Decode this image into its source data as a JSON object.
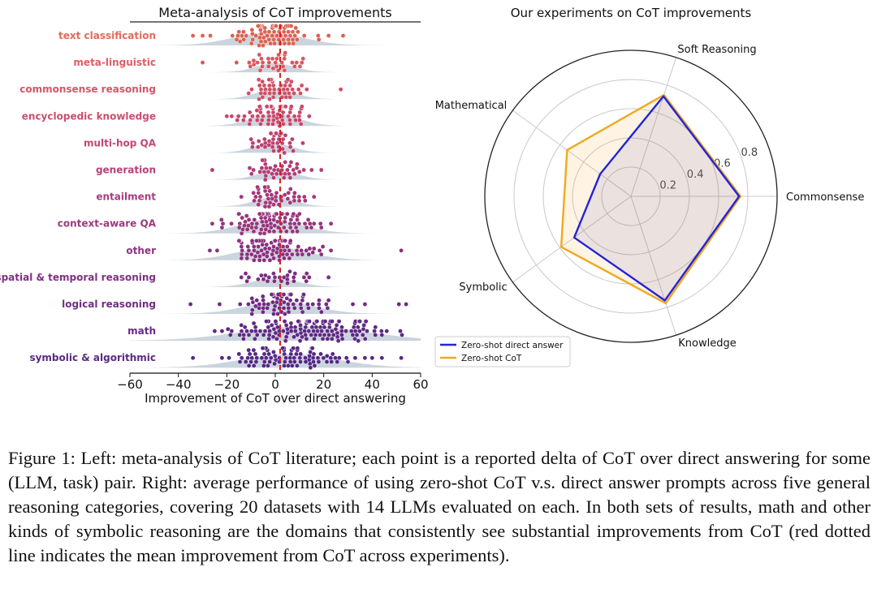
{
  "caption": "Figure 1: Left: meta-analysis of CoT literature; each point is a reported delta of CoT over direct answering for some (LLM, task) pair. Right: average performance of using zero-shot CoT v.s. direct answer prompts across five general reasoning categories, covering 20 datasets with 14 LLMs evaluated on each. In both sets of results, math and other kinds of symbolic reasoning are the domains that consistently see substantial improvements from CoT (red dotted line indicates the mean improvement from CoT across experiments).",
  "chart_data": [
    {
      "type": "scatter",
      "subtype": "beeswarm",
      "title": "Meta-analysis of CoT improvements",
      "xlabel": "Improvement of CoT over direct answering",
      "xlim": [
        -60,
        60
      ],
      "xticks": [
        "−60",
        "−40",
        "−20",
        "0",
        "20",
        "40",
        "60"
      ],
      "mean_line": 2,
      "colors": {
        "mean_line": "#d62020",
        "density": "#b8c7d3",
        "top_category": "#e26a5a",
        "bottom_category": "#5b2a86"
      },
      "categories": [
        {
          "label": "text classification",
          "color": "#e26a5a",
          "dot": "#e0604f",
          "n": 75,
          "center": -3,
          "spread": 9,
          "extremes": [
            -34,
            -30,
            18,
            22,
            28
          ]
        },
        {
          "label": "meta-linguistic",
          "color": "#db5f63",
          "dot": "#d9585e",
          "n": 30,
          "center": 0,
          "spread": 5,
          "extremes": [
            -30,
            -16,
            8,
            11
          ]
        },
        {
          "label": "commonsense reasoning",
          "color": "#d3566a",
          "dot": "#d04f66",
          "n": 45,
          "center": 0,
          "spread": 5,
          "extremes": [
            -11,
            13,
            27
          ]
        },
        {
          "label": "encyclopedic knowledge",
          "color": "#cb4e70",
          "dot": "#c8476b",
          "n": 70,
          "center": 0,
          "spread": 6,
          "extremes": [
            -20,
            -18,
            11,
            14
          ]
        },
        {
          "label": "multi-hop QA",
          "color": "#c14775",
          "dot": "#be4070",
          "n": 40,
          "center": -1,
          "spread": 5,
          "extremes": [
            -10,
            7
          ]
        },
        {
          "label": "generation",
          "color": "#b64178",
          "dot": "#b33a74",
          "n": 35,
          "center": 1,
          "spread": 5,
          "extremes": [
            -26,
            -9,
            8,
            10,
            15,
            19
          ]
        },
        {
          "label": "entailment",
          "color": "#a93c7c",
          "dot": "#a53678",
          "n": 40,
          "center": 0,
          "spread": 5,
          "extremes": [
            -14,
            8,
            12,
            16
          ]
        },
        {
          "label": "context-aware QA",
          "color": "#9c387f",
          "dot": "#98337b",
          "n": 90,
          "center": -2,
          "spread": 8,
          "extremes": [
            -26,
            -22,
            16,
            19,
            23
          ]
        },
        {
          "label": "other",
          "color": "#8e3481",
          "dot": "#8a307e",
          "n": 85,
          "center": -1,
          "spread": 9,
          "extremes": [
            -27,
            -24,
            16,
            19,
            23,
            52
          ]
        },
        {
          "label": "spatial & temporal reasoning",
          "color": "#803083",
          "dot": "#7c2d81",
          "n": 25,
          "center": 0,
          "spread": 6,
          "extremes": [
            -14,
            14,
            22
          ]
        },
        {
          "label": "logical reasoning",
          "color": "#722d84",
          "dot": "#6e2a82",
          "n": 70,
          "center": 2,
          "spread": 9,
          "extremes": [
            -35,
            -23,
            18,
            22,
            32,
            37,
            51,
            54
          ]
        },
        {
          "label": "math",
          "color": "#642b85",
          "dot": "#5f2884",
          "n": 150,
          "center": 12,
          "spread": 16,
          "extremes": [
            -25,
            -22,
            -18,
            -14,
            44,
            46
          ]
        },
        {
          "label": "symbolic & algorithmic",
          "color": "#5b2a86",
          "dot": "#552785",
          "n": 90,
          "center": 6,
          "spread": 12,
          "extremes": [
            -34,
            -15,
            30,
            33,
            37,
            40,
            44,
            52
          ]
        }
      ]
    },
    {
      "type": "radar",
      "title": "Our experiments on CoT improvements",
      "axes": [
        "Commonsense",
        "Soft Reasoning",
        "Mathematical",
        "Symbolic",
        "Knowledge"
      ],
      "rlim": [
        0,
        1
      ],
      "rticks": [
        0.2,
        0.4,
        0.6,
        0.8
      ],
      "rtick_labels": [
        "0.2",
        "0.4",
        "0.6",
        "0.8"
      ],
      "series": [
        {
          "name": "Zero-shot direct answer",
          "color": "#2424d6",
          "values": [
            0.74,
            0.72,
            0.26,
            0.48,
            0.75
          ]
        },
        {
          "name": "Zero-shot CoT",
          "color": "#f0a820",
          "values": [
            0.75,
            0.73,
            0.54,
            0.59,
            0.77
          ]
        }
      ],
      "legend_placement": "lower-left"
    }
  ]
}
